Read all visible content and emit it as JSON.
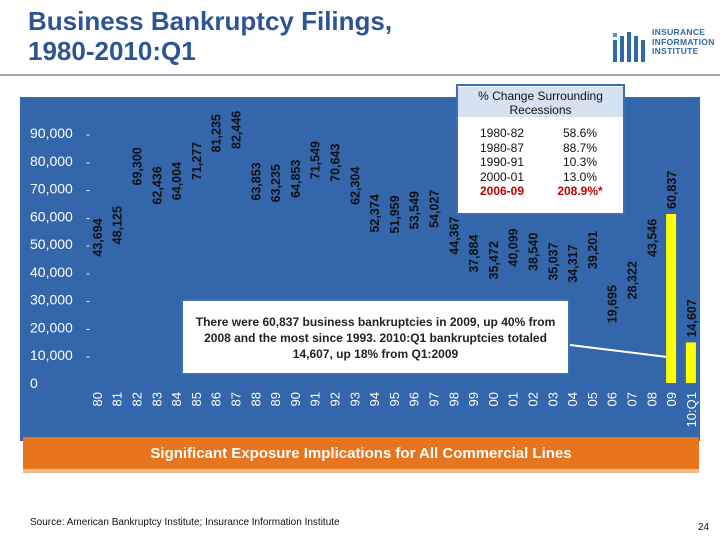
{
  "header": {
    "title_line1": "Business Bankruptcy Filings,",
    "title_line2": "1980-2010:Q1"
  },
  "logo": {
    "line1": "INSURANCE",
    "line2": "INFORMATION",
    "line3": "INSTITUTE",
    "icon": "iii-logo-icon"
  },
  "recessions": {
    "title": "% Change Surrounding Recessions",
    "rows": [
      {
        "period": "1980-82",
        "change": "58.6%"
      },
      {
        "period": "1980-87",
        "change": "88.7%"
      },
      {
        "period": "1990-91",
        "change": "10.3%"
      },
      {
        "period": "2000-01",
        "change": "13.0%"
      },
      {
        "period": "2006-09",
        "change": "208.9%*",
        "highlight": true
      }
    ]
  },
  "callout": {
    "text": "There were 60,837 business bankruptcies in 2009, up 40% from 2008 and the most since 1993. 2010:Q1 bankruptcies totaled 14,607, up 18% from Q1:2009"
  },
  "banner": {
    "text": "Significant Exposure Implications for All Commercial Lines"
  },
  "footer": {
    "source": "Source: American Bankruptcy Institute; Insurance Information Institute",
    "page": "24"
  },
  "colors": {
    "panel": "#3366aa",
    "bar": "#3366aa",
    "highlight_bar": "#ffff00",
    "axis_text": "#ffffff",
    "banner": "#e8741e",
    "recession_highlight": "#c00000"
  },
  "chart_data": {
    "type": "bar",
    "title": "",
    "xlabel": "",
    "ylabel": "",
    "ylim": [
      0,
      90000
    ],
    "yticks": [
      "0",
      "10,000",
      "20,000",
      "30,000",
      "40,000",
      "50,000",
      "60,000",
      "70,000",
      "80,000",
      "90,000"
    ],
    "categories": [
      "80",
      "81",
      "82",
      "83",
      "84",
      "85",
      "86",
      "87",
      "88",
      "89",
      "90",
      "91",
      "92",
      "93",
      "94",
      "95",
      "96",
      "97",
      "98",
      "99",
      "00",
      "01",
      "02",
      "03",
      "04",
      "05",
      "06",
      "07",
      "08",
      "09",
      "10:Q1"
    ],
    "values": [
      43694,
      48125,
      69300,
      62436,
      64004,
      71277,
      81235,
      82446,
      63853,
      63235,
      64853,
      71549,
      70643,
      62304,
      52374,
      51959,
      53549,
      54027,
      44367,
      37884,
      35472,
      40099,
      38540,
      35037,
      34317,
      39201,
      19695,
      28322,
      43546,
      60837,
      14607
    ],
    "labels": [
      "43,694",
      "48,125",
      "69,300",
      "62,436",
      "64,004",
      "71,277",
      "81,235",
      "82,446",
      "63,853",
      "63,235",
      "64,853",
      "71,549",
      "70,643",
      "62,304",
      "52,374",
      "51,959",
      "53,549",
      "54,027",
      "44,367",
      "37,884",
      "35,472",
      "40,099",
      "38,540",
      "35,037",
      "34,317",
      "39,201",
      "19,695",
      "28,322",
      "43,546",
      "60,837",
      "14,607"
    ],
    "highlight_index": 30,
    "grid": false,
    "legend": "none"
  }
}
